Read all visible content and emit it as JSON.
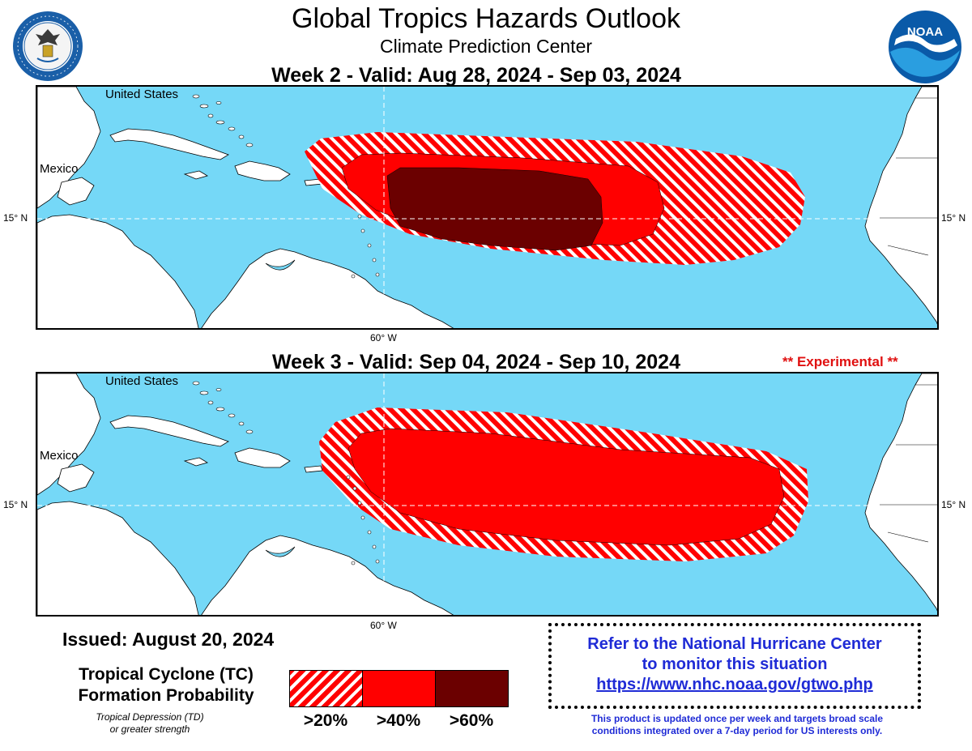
{
  "header": {
    "title": "Global Tropics Hazards Outlook",
    "subtitle": "Climate Prediction Center"
  },
  "logos": {
    "left": "department-of-commerce-seal",
    "left_text": "DEPARTMENT OF COMMERCE · UNITED STATES OF AMERICA",
    "right": "noaa-logo",
    "right_text": "NOAA"
  },
  "panels": [
    {
      "title": "Week 2 - Valid: Aug 28, 2024 - Sep 03, 2024",
      "labels": {
        "country_us": "United States",
        "country_mexico": "Mexico"
      },
      "lat_label": "15° N",
      "lon_label": "60° W",
      "hazards": [
        ">20%",
        ">40%",
        ">60%"
      ]
    },
    {
      "title": "Week 3 - Valid: Sep 04, 2024 - Sep 10, 2024",
      "tag": "** Experimental **",
      "labels": {
        "country_us": "United States",
        "country_mexico": "Mexico"
      },
      "lat_label": "15° N",
      "lon_label": "60° W",
      "hazards": [
        ">20%",
        ">40%"
      ]
    }
  ],
  "issued": "Issued: August 20, 2024",
  "legend": {
    "title_line1": "Tropical Cyclone (TC)",
    "title_line2": "Formation Probability",
    "sub_line1": "Tropical Depression (TD)",
    "sub_line2": "or greater strength",
    "categories": [
      {
        "label": ">20%",
        "fill": "hatched",
        "color": "#ff0000"
      },
      {
        "label": ">40%",
        "fill": "solid",
        "color": "#ff0000"
      },
      {
        "label": ">60%",
        "fill": "solid",
        "color": "#6b0000"
      }
    ]
  },
  "nhc": {
    "line1": "Refer to the National Hurricane Center",
    "line2": "to monitor this situation",
    "link": "https://www.nhc.noaa.gov/gtwo.php"
  },
  "disclaimer": {
    "line1": "This product is updated once per week and targets broad scale",
    "line2": "conditions integrated over a 7-day period for US interests only."
  },
  "colors": {
    "ocean": "#75d8f7",
    "land": "#ffffff",
    "hazard_red": "#ff0000",
    "hazard_dark": "#6b0000",
    "link_blue": "#1f2bd6",
    "experimental_red": "#e01010"
  }
}
